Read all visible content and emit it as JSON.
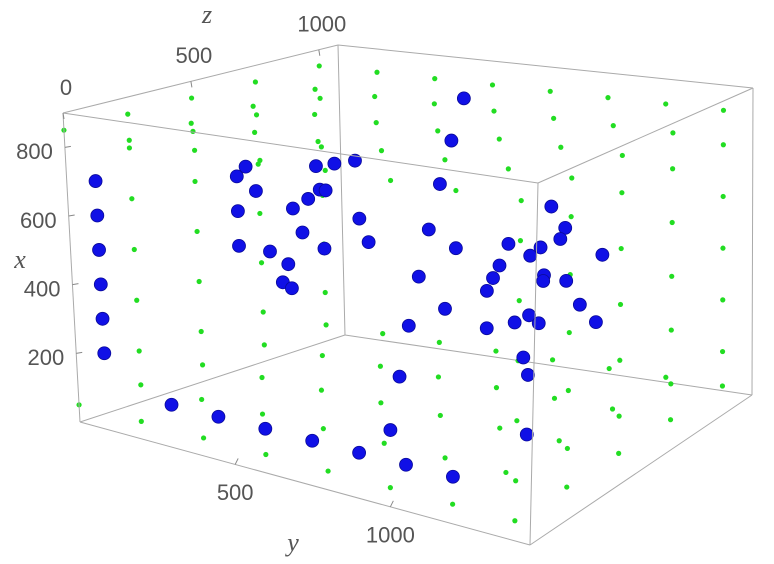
{
  "chart_data": {
    "type": "scatter3d",
    "xlabel": "x",
    "ylabel": "y",
    "zlabel": "z",
    "xlim": [
      0,
      900
    ],
    "ylim": [
      0,
      1450
    ],
    "zlim": [
      0,
      1075
    ],
    "xticks": [
      200,
      400,
      600,
      800
    ],
    "yticks": [
      500,
      1000
    ],
    "zticks": [
      0,
      500,
      1000
    ],
    "series": [
      {
        "color": "#22dd22",
        "x": [
          850,
          850,
          850,
          850,
          850,
          850,
          850,
          850,
          850,
          850,
          850,
          850,
          850,
          850,
          850,
          850,
          850,
          850,
          850,
          850,
          850,
          850,
          850,
          850,
          850,
          850,
          850,
          850,
          850,
          850,
          850,
          850,
          850,
          850,
          850,
          850,
          850,
          850,
          850,
          850,
          50,
          50,
          50,
          50,
          50,
          50,
          50,
          50,
          50,
          50,
          50,
          50,
          50,
          50,
          50,
          50,
          50,
          50,
          50,
          50,
          50,
          50,
          50,
          50,
          50,
          50,
          50,
          50,
          50,
          50,
          50,
          50,
          50,
          50,
          50,
          50,
          50,
          50,
          50,
          50,
          150,
          300,
          450,
          600,
          750,
          150,
          300,
          450,
          600,
          750,
          150,
          300,
          450,
          600,
          750,
          150,
          300,
          450,
          600,
          750,
          150,
          300,
          450,
          600,
          750,
          150,
          300,
          450,
          600,
          750,
          150,
          300,
          450,
          600,
          750,
          150,
          300,
          450,
          600,
          750,
          150,
          300,
          450,
          600,
          750
        ],
        "y": [
          0,
          200,
          400,
          600,
          800,
          1000,
          1200,
          1400,
          0,
          200,
          400,
          600,
          800,
          1000,
          1200,
          1400,
          0,
          200,
          400,
          600,
          800,
          1000,
          1200,
          1400,
          0,
          200,
          400,
          600,
          800,
          1000,
          1200,
          1400,
          0,
          200,
          400,
          600,
          800,
          1000,
          1200,
          1400,
          0,
          200,
          400,
          600,
          800,
          1000,
          1200,
          1400,
          0,
          200,
          400,
          600,
          800,
          1000,
          1200,
          1400,
          0,
          200,
          400,
          600,
          800,
          1000,
          1200,
          1400,
          0,
          200,
          400,
          600,
          800,
          1000,
          1200,
          1400,
          0,
          200,
          400,
          600,
          800,
          1000,
          1200,
          1400,
          1400,
          1400,
          1400,
          1400,
          1400,
          1400,
          1400,
          1400,
          1400,
          1400,
          1400,
          1400,
          1400,
          1400,
          1400,
          1400,
          1400,
          1400,
          1400,
          1400,
          1400,
          1400,
          1400,
          1400,
          1400,
          0,
          0,
          0,
          0,
          0,
          0,
          0,
          0,
          0,
          0,
          0,
          0,
          0,
          0,
          0,
          0,
          0,
          0,
          0,
          0
        ],
        "z": [
          0,
          0,
          0,
          0,
          0,
          0,
          0,
          0,
          250,
          250,
          250,
          250,
          250,
          250,
          250,
          250,
          500,
          500,
          500,
          500,
          500,
          500,
          500,
          500,
          750,
          750,
          750,
          750,
          750,
          750,
          750,
          750,
          1000,
          1000,
          1000,
          1000,
          1000,
          1000,
          1000,
          1000,
          0,
          0,
          0,
          0,
          0,
          0,
          0,
          0,
          250,
          250,
          250,
          250,
          250,
          250,
          250,
          250,
          500,
          500,
          500,
          500,
          500,
          500,
          500,
          500,
          750,
          750,
          750,
          750,
          750,
          750,
          750,
          750,
          1000,
          1000,
          1000,
          1000,
          1000,
          1000,
          1000,
          1000,
          0,
          0,
          0,
          0,
          0,
          250,
          250,
          250,
          250,
          250,
          500,
          500,
          500,
          500,
          500,
          750,
          750,
          750,
          750,
          750,
          1000,
          1000,
          1000,
          1000,
          1000,
          250,
          250,
          250,
          250,
          250,
          500,
          500,
          500,
          500,
          500,
          750,
          750,
          750,
          750,
          750,
          1000,
          1000,
          1000,
          1000,
          1000
        ]
      },
      {
        "color": "#1010e6",
        "x": [
          500,
          600,
          700,
          500,
          600,
          700,
          400,
          500,
          600,
          650,
          550,
          450,
          700,
          400,
          550,
          600,
          650,
          500,
          350,
          700,
          400,
          500,
          600,
          400,
          500,
          600,
          450,
          350,
          550,
          650,
          400,
          500,
          300,
          600,
          550,
          450,
          650,
          350,
          500,
          450,
          800,
          714,
          629,
          543,
          457,
          371,
          286,
          200,
          200,
          300,
          400,
          500,
          600,
          700,
          120,
          120,
          120,
          120,
          120,
          120,
          120,
          250,
          400,
          550,
          700
        ],
        "y": [
          300,
          300,
          300,
          400,
          400,
          400,
          300,
          350,
          350,
          450,
          250,
          450,
          250,
          400,
          500,
          200,
          300,
          500,
          350,
          450,
          1100,
          1100,
          1100,
          1200,
          1000,
          1200,
          1150,
          1050,
          1250,
          1100,
          1000,
          1200,
          1150,
          1000,
          1100,
          1300,
          1250,
          1250,
          1050,
          1000,
          500,
          571,
          643,
          714,
          786,
          857,
          929,
          1000,
          50,
          50,
          50,
          50,
          50,
          50,
          300,
          450,
          600,
          750,
          900,
          1050,
          1200,
          1400,
          1400,
          1400,
          1400
        ],
        "z": [
          300,
          300,
          300,
          300,
          400,
          500,
          500,
          500,
          600,
          450,
          650,
          650,
          400,
          350,
          550,
          500,
          700,
          400,
          450,
          600,
          300,
          300,
          400,
          400,
          500,
          500,
          600,
          500,
          350,
          600,
          700,
          700,
          400,
          300,
          550,
          450,
          450,
          600,
          400,
          250,
          1000,
          857,
          714,
          571,
          429,
          286,
          143,
          0,
          50,
          50,
          50,
          50,
          50,
          50,
          0,
          0,
          0,
          0,
          0,
          0,
          0,
          50,
          50,
          50,
          50
        ]
      }
    ]
  }
}
